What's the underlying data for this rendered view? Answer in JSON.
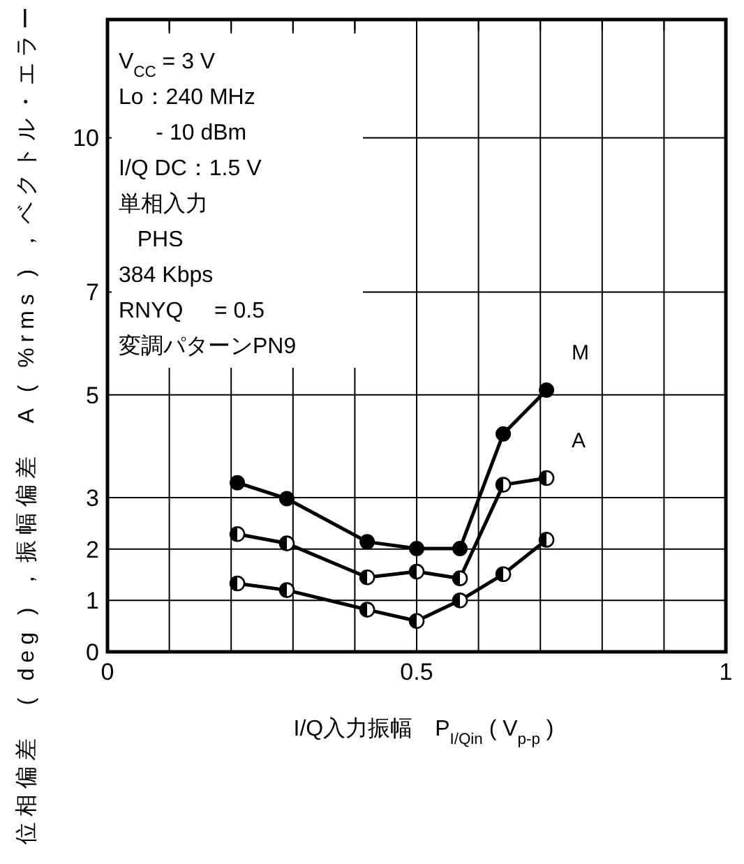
{
  "chart_data": {
    "type": "line",
    "xlabel": "I/Q入力振幅　P$_{I/Qin}$ ( V$_{p-p}$ )",
    "ylabel": "位相偏差　( deg ) ，振幅偏差　A ( %rms ) ，ベクトル・エラー",
    "xlim": [
      0,
      1
    ],
    "ylim": [
      0,
      12.3
    ],
    "xticks": [
      0,
      {
        "value": 0.1,
        "label": null
      },
      {
        "value": 0.2,
        "label": null
      },
      {
        "value": 0.3,
        "label": null
      },
      {
        "value": 0.4,
        "label": null
      },
      0.5,
      {
        "value": 0.6,
        "label": null
      },
      {
        "value": 0.7,
        "label": null
      },
      {
        "value": 0.8,
        "label": null
      },
      {
        "value": 0.9,
        "label": null
      },
      1
    ],
    "yticks": [
      0,
      1,
      2,
      3,
      5,
      7,
      10
    ],
    "grid": true,
    "marker": "circle",
    "line_style": "solid",
    "x": [
      0.21,
      0.29,
      0.42,
      0.5,
      0.57,
      0.64,
      0.71
    ],
    "series": [
      {
        "name": "M",
        "color": "#000000",
        "values": [
          3.29,
          2.98,
          2.14,
          2.01,
          2.01,
          4.24,
          5.09
        ]
      },
      {
        "name": "A",
        "color": "#000000",
        "values": [
          2.29,
          2.11,
          1.45,
          1.56,
          1.43,
          3.25,
          3.38
        ]
      },
      {
        "color": "#000000",
        "values": [
          1.33,
          1.2,
          0.82,
          0.6,
          1.0,
          1.51,
          2.18
        ]
      }
    ],
    "annotations": [
      "V$_{CC}$ = 3 V\nLo：240 MHz\n      - 10 dBm\nI/Q DC：1.5 V\n単相入力\n   PHS\n384 Kbps\nRNYQ     = 0.5\n変調パターンPN9"
    ]
  }
}
